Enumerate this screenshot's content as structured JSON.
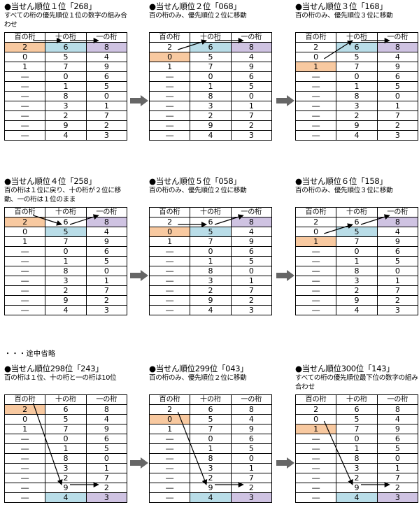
{
  "header": {
    "hundreds": "百の桁",
    "tens": "十の桁",
    "ones": "一の桁"
  },
  "panels": [
    {
      "title": "●当せん順位１位「268」",
      "desc": "すべての桁の優先順位１位の数字の組み合わせ",
      "rows": [
        [
          "2",
          "6",
          "8"
        ],
        [
          "0",
          "5",
          "4"
        ],
        [
          "1",
          "7",
          "9"
        ],
        [
          "―",
          "0",
          "6"
        ],
        [
          "―",
          "1",
          "5"
        ],
        [
          "―",
          "8",
          "0"
        ],
        [
          "―",
          "3",
          "1"
        ],
        [
          "―",
          "2",
          "7"
        ],
        [
          "―",
          "9",
          "2"
        ],
        [
          "―",
          "4",
          "3"
        ]
      ],
      "highlight": {
        "h": 0,
        "t": 0,
        "o": 0
      }
    },
    {
      "title": "●当せん順位２位「068」",
      "desc": "百の桁のみ、優先順位２位に移動",
      "rows": [
        [
          "2",
          "6",
          "8"
        ],
        [
          "0",
          "5",
          "4"
        ],
        [
          "1",
          "7",
          "9"
        ],
        [
          "―",
          "0",
          "6"
        ],
        [
          "―",
          "1",
          "5"
        ],
        [
          "―",
          "8",
          "0"
        ],
        [
          "―",
          "3",
          "1"
        ],
        [
          "―",
          "2",
          "7"
        ],
        [
          "―",
          "9",
          "2"
        ],
        [
          "―",
          "4",
          "3"
        ]
      ],
      "highlight": {
        "h": 1,
        "t": 0,
        "o": 0
      }
    },
    {
      "title": "●当せん順位３位「168」",
      "desc": "百の桁のみ、優先順位３位に移動",
      "rows": [
        [
          "2",
          "6",
          "8"
        ],
        [
          "0",
          "5",
          "4"
        ],
        [
          "1",
          "7",
          "9"
        ],
        [
          "―",
          "0",
          "6"
        ],
        [
          "―",
          "1",
          "5"
        ],
        [
          "―",
          "8",
          "0"
        ],
        [
          "―",
          "3",
          "1"
        ],
        [
          "―",
          "2",
          "7"
        ],
        [
          "―",
          "9",
          "2"
        ],
        [
          "―",
          "4",
          "3"
        ]
      ],
      "highlight": {
        "h": 2,
        "t": 0,
        "o": 0
      }
    },
    {
      "title": "●当せん順位４位「258」",
      "desc": "百の桁は１位に戻り、十の桁が２位に移動、一の桁は１位のまま",
      "rows": [
        [
          "2",
          "6",
          "8"
        ],
        [
          "0",
          "5",
          "4"
        ],
        [
          "1",
          "7",
          "9"
        ],
        [
          "―",
          "0",
          "6"
        ],
        [
          "―",
          "1",
          "5"
        ],
        [
          "―",
          "8",
          "0"
        ],
        [
          "―",
          "3",
          "1"
        ],
        [
          "―",
          "2",
          "7"
        ],
        [
          "―",
          "9",
          "2"
        ],
        [
          "―",
          "4",
          "3"
        ]
      ],
      "highlight": {
        "h": 0,
        "t": 1,
        "o": 0
      }
    },
    {
      "title": "●当せん順位５位「058」",
      "desc": "百の桁のみ、優先順位２位に移動",
      "rows": [
        [
          "2",
          "6",
          "8"
        ],
        [
          "0",
          "5",
          "4"
        ],
        [
          "1",
          "7",
          "9"
        ],
        [
          "―",
          "0",
          "6"
        ],
        [
          "―",
          "1",
          "5"
        ],
        [
          "―",
          "8",
          "0"
        ],
        [
          "―",
          "3",
          "1"
        ],
        [
          "―",
          "2",
          "7"
        ],
        [
          "―",
          "9",
          "2"
        ],
        [
          "―",
          "4",
          "3"
        ]
      ],
      "highlight": {
        "h": 1,
        "t": 1,
        "o": 0
      }
    },
    {
      "title": "●当せん順位６位「158」",
      "desc": "百の桁のみ、優先順位３位に移動",
      "rows": [
        [
          "2",
          "6",
          "8"
        ],
        [
          "0",
          "5",
          "4"
        ],
        [
          "1",
          "7",
          "9"
        ],
        [
          "―",
          "0",
          "6"
        ],
        [
          "―",
          "1",
          "5"
        ],
        [
          "―",
          "8",
          "0"
        ],
        [
          "―",
          "3",
          "1"
        ],
        [
          "―",
          "2",
          "7"
        ],
        [
          "―",
          "9",
          "2"
        ],
        [
          "―",
          "4",
          "3"
        ]
      ],
      "highlight": {
        "h": 2,
        "t": 1,
        "o": 0
      }
    },
    {
      "title": "●当せん順位298位「243」",
      "desc": "百の桁は１位、十の桁と一の桁は10位",
      "rows": [
        [
          "2",
          "6",
          "8"
        ],
        [
          "0",
          "5",
          "4"
        ],
        [
          "1",
          "7",
          "9"
        ],
        [
          "―",
          "0",
          "6"
        ],
        [
          "―",
          "1",
          "5"
        ],
        [
          "―",
          "8",
          "0"
        ],
        [
          "―",
          "3",
          "1"
        ],
        [
          "―",
          "2",
          "7"
        ],
        [
          "―",
          "9",
          "2"
        ],
        [
          "―",
          "4",
          "3"
        ]
      ],
      "highlight": {
        "h": 0,
        "t": 9,
        "o": 9
      }
    },
    {
      "title": "●当せん順位299位「043」",
      "desc": "百の桁のみ、優先順位２位に移動",
      "rows": [
        [
          "2",
          "6",
          "8"
        ],
        [
          "0",
          "5",
          "4"
        ],
        [
          "1",
          "7",
          "9"
        ],
        [
          "―",
          "0",
          "6"
        ],
        [
          "―",
          "1",
          "5"
        ],
        [
          "―",
          "8",
          "0"
        ],
        [
          "―",
          "3",
          "1"
        ],
        [
          "―",
          "2",
          "7"
        ],
        [
          "―",
          "9",
          "2"
        ],
        [
          "―",
          "4",
          "3"
        ]
      ],
      "highlight": {
        "h": 1,
        "t": 9,
        "o": 9
      }
    },
    {
      "title": "●当せん順位300位「143」",
      "desc": "すべての桁の優先順位最下位の数字の組み合わせ",
      "rows": [
        [
          "2",
          "6",
          "8"
        ],
        [
          "0",
          "5",
          "4"
        ],
        [
          "1",
          "7",
          "9"
        ],
        [
          "―",
          "0",
          "6"
        ],
        [
          "―",
          "1",
          "5"
        ],
        [
          "―",
          "8",
          "0"
        ],
        [
          "―",
          "3",
          "1"
        ],
        [
          "―",
          "2",
          "7"
        ],
        [
          "―",
          "9",
          "2"
        ],
        [
          "―",
          "4",
          "3"
        ]
      ],
      "highlight": {
        "h": 2,
        "t": 9,
        "o": 9
      }
    }
  ],
  "omitted_note": "・・・途中省略",
  "colors": {
    "hundreds": "#f8c9a0",
    "tens": "#b9dde8",
    "ones": "#cfc3e2",
    "side_arrow": "#666666"
  },
  "icons": {
    "side_arrow": "right-arrow-icon"
  }
}
